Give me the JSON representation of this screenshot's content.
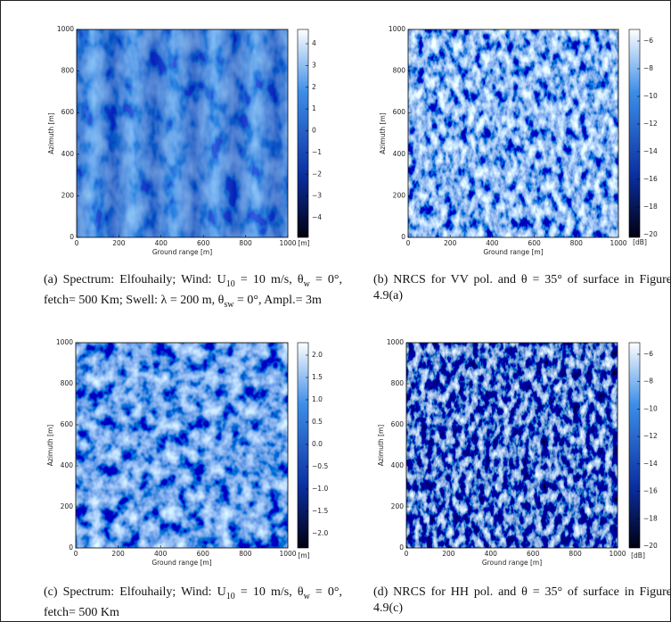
{
  "panels": [
    {
      "y_label": "Azimuth [m]",
      "x_label": "Ground range [m]",
      "xticks": [
        "0",
        "200",
        "400",
        "600",
        "800",
        "1000"
      ],
      "yticks": [
        "0",
        "200",
        "400",
        "600",
        "800",
        "1000"
      ],
      "colorbar_ticks": [
        "4",
        "3",
        "2",
        "1",
        "0",
        "−1",
        "−2",
        "−3",
        "−4"
      ],
      "colorbar_unit": "[m]",
      "caption": [
        "(a) Spectrum: Elfouhaily; Wind: U",
        "10",
        " = 10 m/s, θ",
        "w",
        " = 0°, fetch= 500 Km; Swell: λ = 200 m, θ",
        "sw",
        " = 0°, Ampl.= 3m"
      ]
    },
    {
      "y_label": "Azimuth [m]",
      "x_label": "Ground range [m]",
      "xticks": [
        "0",
        "200",
        "400",
        "600",
        "800",
        "1000"
      ],
      "yticks": [
        "0",
        "200",
        "400",
        "600",
        "800",
        "1000"
      ],
      "colorbar_ticks": [
        "−6",
        "−8",
        "−10",
        "−12",
        "−14",
        "−16",
        "−18",
        "−20"
      ],
      "colorbar_unit": "[dB]",
      "caption": [
        "(b) NRCS for VV pol. and θ = 35° of surface in Figure 4.9(a)"
      ]
    },
    {
      "y_label": "Azimuth [m]",
      "x_label": "Ground range [m]",
      "xticks": [
        "0",
        "200",
        "400",
        "600",
        "800",
        "1000"
      ],
      "yticks": [
        "0",
        "200",
        "400",
        "600",
        "800",
        "1000"
      ],
      "colorbar_ticks": [
        "2.0",
        "1.5",
        "1.0",
        "0.5",
        "0.0",
        "−0.5",
        "−1.0",
        "−1.5",
        "−2.0"
      ],
      "colorbar_unit": "[m]",
      "caption": [
        "(c) Spectrum: Elfouhaily; Wind: U",
        "10",
        " = 10 m/s, θ",
        "w",
        " = 0°, fetch= 500 Km"
      ]
    },
    {
      "y_label": "Azimuth [m]",
      "x_label": "Ground range [m]",
      "xticks": [
        "0",
        "200",
        "400",
        "600",
        "800",
        "1000"
      ],
      "yticks": [
        "0",
        "200",
        "400",
        "600",
        "800",
        "1000"
      ],
      "colorbar_ticks": [
        "−6",
        "−8",
        "−10",
        "−12",
        "−14",
        "−16",
        "−18",
        "−20"
      ],
      "colorbar_unit": "[dB]",
      "caption": [
        "(d) NRCS for HH pol. and θ = 35° of surface in Figure 4.9(c)"
      ]
    }
  ]
}
